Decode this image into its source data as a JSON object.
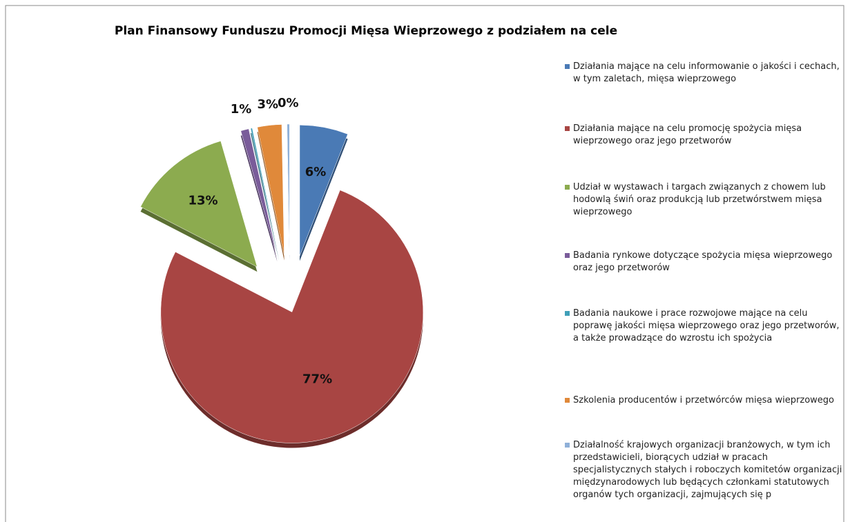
{
  "chart_data": {
    "type": "pie",
    "title": "Plan Finansowy Funduszu Promocji Mięsa Wieprzowego z podziałem na cele",
    "categories": [
      "Działania mające na celu informowanie o jakości i cechach, w tym zaletach, mięsa wieprzowego",
      "Działania mające na celu promocję spożycia mięsa wieprzowego oraz jego przetworów",
      "Udział w wystawach i targach związanych z chowem lub hodowlą świń oraz produkcją lub przetwórstwem mięsa wieprzowego",
      "Badania rynkowe dotyczące spożycia mięsa wieprzowego oraz jego przetworów",
      "Badania naukowe i prace rozwojowe mające na celu poprawę jakości mięsa wieprzowego oraz jego przetworów, a także prowadzące do wzrostu ich spożycia",
      "Szkolenia producentów i przetwórców mięsa wieprzowego",
      "Działalność krajowych organizacji branżowych, w tym ich przedstawicieli, biorących udział w pracach specjalistycznych stałych i roboczych komitetów organizacji międzynarodowych lub będących członkami statutowych organów tych organizacji, zajmujących się p"
    ],
    "values": [
      6,
      77,
      13,
      1,
      0.2,
      3,
      0.3
    ],
    "value_labels": [
      "6%",
      "77%",
      "13%",
      "1%",
      null,
      "3%",
      "0%"
    ],
    "colors": [
      "#4a7ab5",
      "#a84543",
      "#8cab4f",
      "#7a5c9a",
      "#3f9fb8",
      "#e0893a",
      "#8fb0d8"
    ],
    "legend": "right"
  }
}
